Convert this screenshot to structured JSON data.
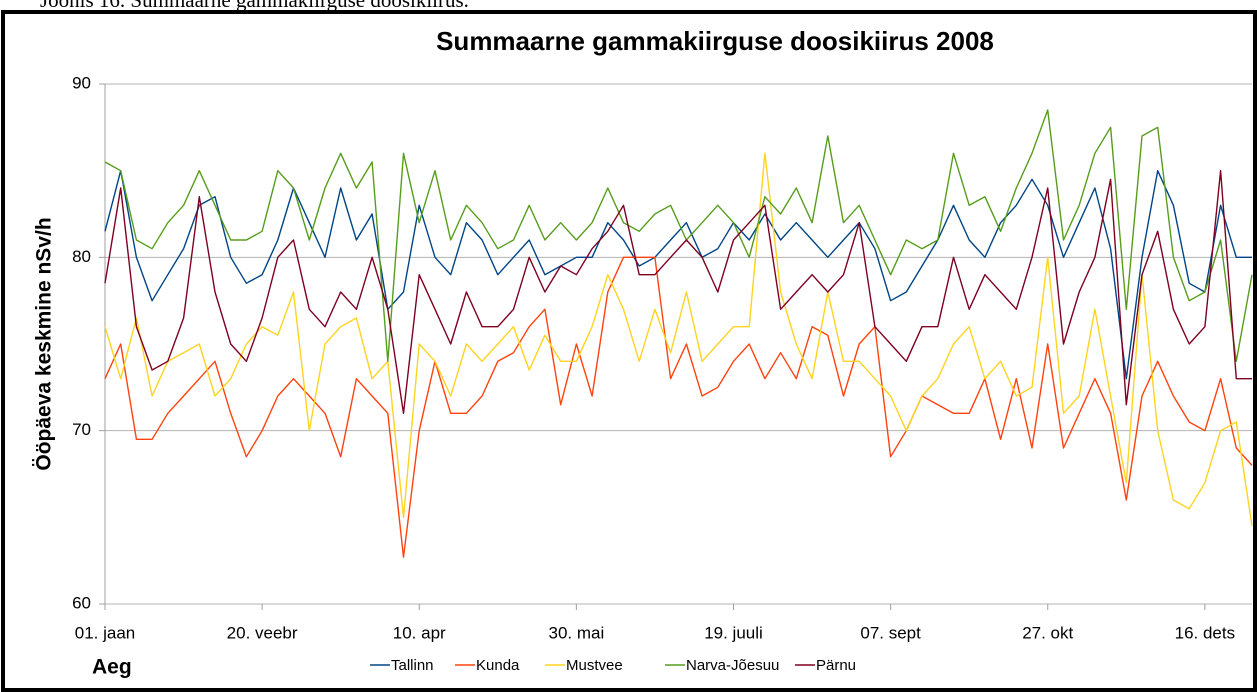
{
  "caption": "Joonis 16. Summaarne gammakiirguse doosikiirus.",
  "chart_data": {
    "type": "line",
    "title": "Summaarne gammakiirguse doosikiirus 2008",
    "x_label": "Aeg",
    "y_label": "Ööpäeva keskmine nSv/h",
    "x": [
      0,
      5,
      10,
      15,
      20,
      25,
      30,
      35,
      40,
      45,
      50,
      55,
      60,
      65,
      70,
      75,
      80,
      85,
      90,
      95,
      100,
      105,
      110,
      115,
      120,
      125,
      130,
      135,
      140,
      145,
      150,
      155,
      160,
      165,
      170,
      175,
      180,
      185,
      190,
      195,
      200,
      205,
      210,
      215,
      220,
      225,
      230,
      235,
      240,
      245,
      250,
      255,
      260,
      265,
      270,
      275,
      280,
      285,
      290,
      295,
      300,
      305,
      310,
      315,
      320,
      325,
      330,
      335,
      340,
      345,
      350,
      355,
      360,
      365
    ],
    "xlim": [
      0,
      365
    ],
    "xticks": [
      {
        "value": 0,
        "label": "01. jaan"
      },
      {
        "value": 50,
        "label": "20. veebr"
      },
      {
        "value": 100,
        "label": "10. apr"
      },
      {
        "value": 150,
        "label": "30. mai"
      },
      {
        "value": 200,
        "label": "19. juuli"
      },
      {
        "value": 250,
        "label": "07. sept"
      },
      {
        "value": 300,
        "label": "27. okt"
      },
      {
        "value": 350,
        "label": "16. dets"
      }
    ],
    "ylim": [
      60,
      90
    ],
    "yticks": [
      60,
      70,
      80,
      90
    ],
    "grid": true,
    "series": [
      {
        "name": "Tallinn",
        "color": "#004586",
        "values": [
          81.5,
          85,
          80,
          77.5,
          79,
          80.5,
          83,
          83.5,
          80,
          78.5,
          79,
          81,
          84,
          82,
          80,
          84,
          81,
          82.5,
          77,
          78,
          83,
          80,
          79,
          82,
          81,
          79,
          80,
          81,
          79,
          79.5,
          80,
          80,
          82,
          81,
          79.5,
          80,
          81,
          82,
          80,
          80.5,
          82,
          81,
          82.5,
          81,
          82,
          81,
          80,
          81,
          82,
          80.5,
          77.5,
          78,
          79.5,
          81,
          83,
          81,
          80,
          82,
          83,
          84.5,
          83,
          80,
          82,
          84,
          80.5,
          73,
          80,
          85,
          83,
          78.5,
          78,
          83,
          80,
          80
        ]
      },
      {
        "name": "Kunda",
        "color": "#ff420e",
        "values": [
          73,
          75,
          69.5,
          69.5,
          71,
          72,
          73,
          74,
          71,
          68.5,
          70,
          72,
          73,
          72,
          71,
          68.5,
          73,
          72,
          71,
          62.7,
          70,
          74,
          71,
          71,
          72,
          74,
          74.5,
          76,
          77,
          71.5,
          75,
          72,
          78,
          80,
          80,
          80,
          73,
          75,
          72,
          72.5,
          74,
          75,
          73,
          74.5,
          73,
          76,
          75.5,
          72,
          75,
          76,
          68.5,
          70,
          72,
          71.5,
          71,
          71,
          73,
          69.5,
          73,
          69,
          75,
          69,
          71,
          73,
          71,
          66,
          72,
          74,
          72,
          70.5,
          70,
          73,
          69,
          68
        ]
      },
      {
        "name": "Mustvee",
        "color": "#ffd320",
        "values": [
          76,
          73,
          76.5,
          72,
          74,
          74.5,
          75,
          72,
          73,
          75,
          76,
          75.5,
          78,
          70,
          75,
          76,
          76.5,
          73,
          74,
          65,
          75,
          74,
          72,
          75,
          74,
          75,
          76,
          73.5,
          75.5,
          74,
          74,
          76,
          79,
          77,
          74,
          77,
          74.5,
          78,
          74,
          75,
          76,
          76,
          86,
          78,
          75,
          73,
          78,
          74,
          74,
          73,
          72,
          70,
          72,
          73,
          75,
          76,
          73,
          74,
          72,
          72.5,
          80,
          71,
          72,
          77,
          72,
          67,
          79,
          70,
          66,
          65.5,
          67,
          70,
          70.5,
          64.5
        ]
      },
      {
        "name": "Narva-Jõesuu",
        "color": "#579d1c",
        "values": [
          85.5,
          85,
          81,
          80.5,
          82,
          83,
          85,
          83,
          81,
          81,
          81.5,
          85,
          84,
          81,
          84,
          86,
          84,
          85.5,
          74,
          86,
          82,
          85,
          81,
          83,
          82,
          80.5,
          81,
          83,
          81,
          82,
          81,
          82,
          84,
          82,
          81.5,
          82.5,
          83,
          81,
          82,
          83,
          82,
          80,
          83.5,
          82.5,
          84,
          82,
          87,
          82,
          83,
          81,
          79,
          81,
          80.5,
          81,
          86,
          83,
          83.5,
          81.5,
          84,
          86,
          88.5,
          81,
          83,
          86,
          87.5,
          77,
          87,
          87.5,
          80,
          77.5,
          78,
          81,
          74,
          79
        ]
      },
      {
        "name": "Pärnu",
        "color": "#7e0021",
        "values": [
          78.5,
          84,
          76,
          73.5,
          74,
          76.5,
          83.5,
          78,
          75,
          74,
          76.5,
          80,
          81,
          77,
          76,
          78,
          77,
          80,
          77,
          71,
          79,
          77,
          75,
          78,
          76,
          76,
          77,
          80,
          78,
          79.5,
          79,
          80.5,
          81.5,
          83,
          79,
          79,
          80,
          81,
          80,
          78,
          81,
          82,
          83,
          77,
          78,
          79,
          78,
          79,
          82,
          76,
          75,
          74,
          76,
          76,
          80,
          77,
          79,
          78,
          77,
          80,
          84,
          75,
          78,
          80,
          84.5,
          71.5,
          79,
          81.5,
          77,
          75,
          76,
          85,
          73,
          73
        ]
      }
    ]
  }
}
